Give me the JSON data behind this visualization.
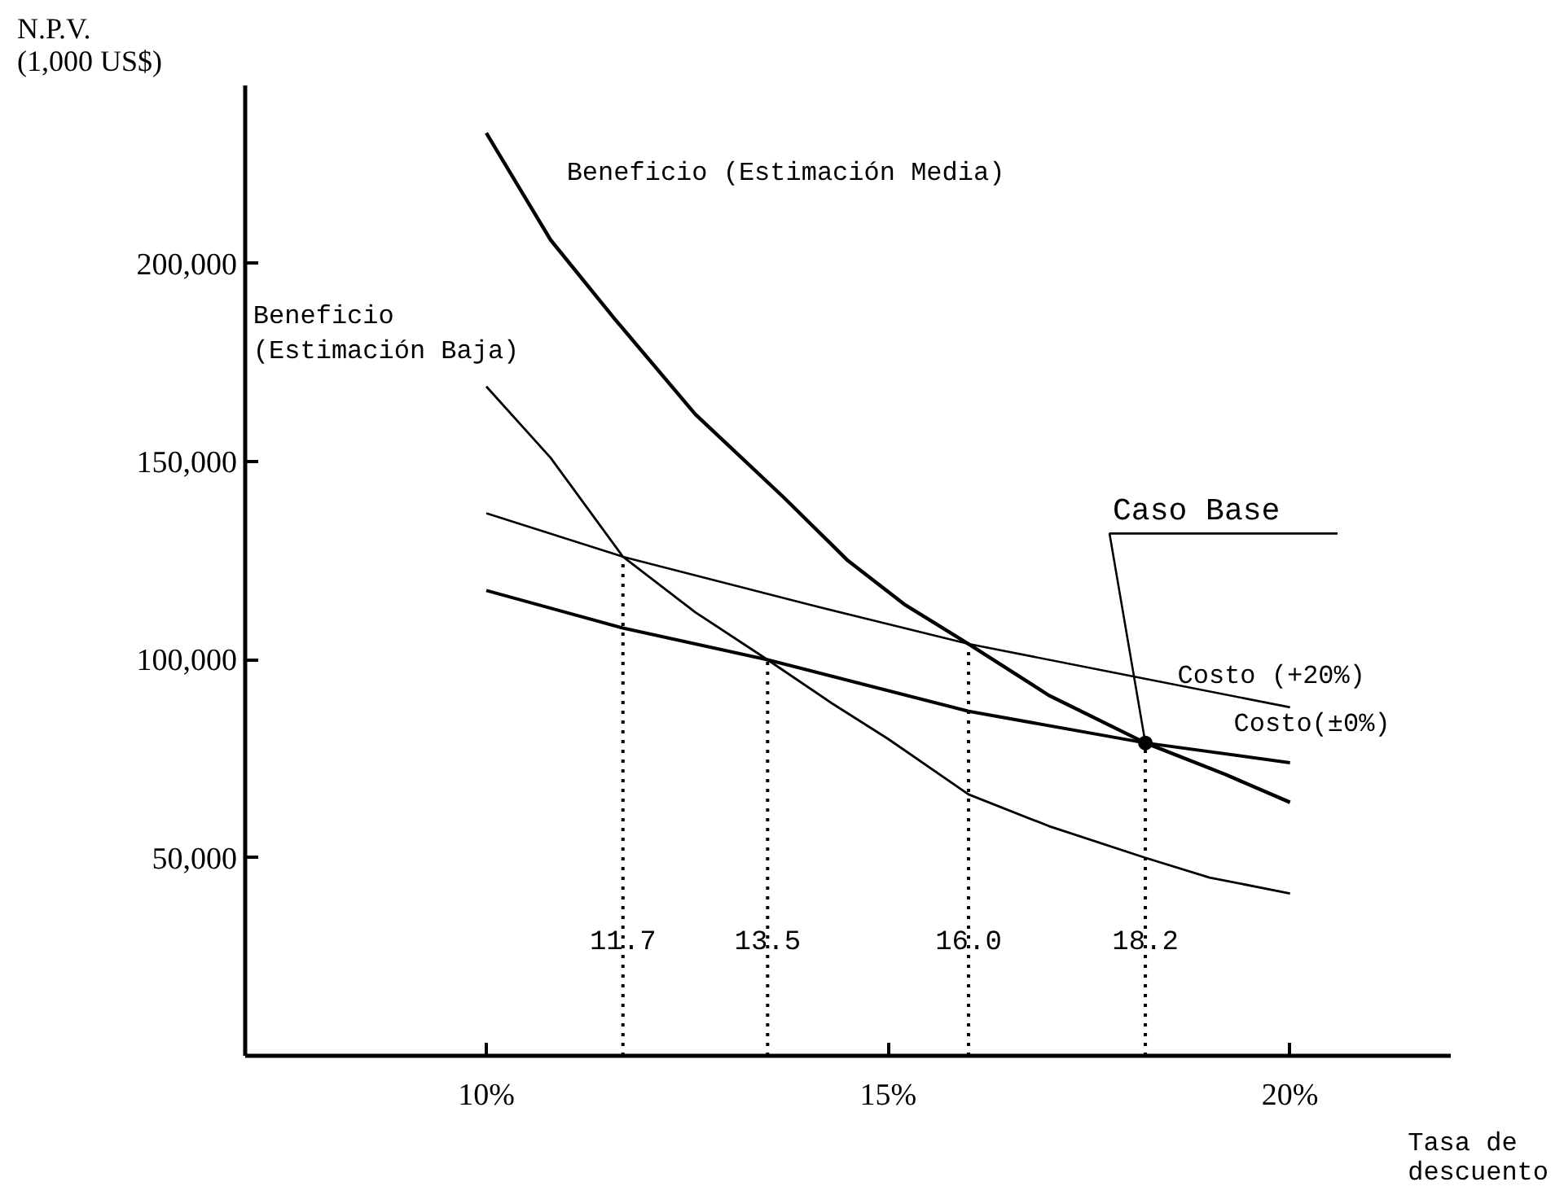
{
  "chart_data": {
    "type": "line",
    "xlabel": "Tasa de\ndescuento",
    "ylabel": "N.P.V.\n(1,000 US$)",
    "xlim": [
      7,
      22
    ],
    "ylim": [
      0,
      245000
    ],
    "xticks": [
      {
        "value": 10,
        "label": "10%"
      },
      {
        "value": 15,
        "label": "15%"
      },
      {
        "value": 20,
        "label": "20%"
      }
    ],
    "yticks": [
      {
        "value": 50000,
        "label": "50,000"
      },
      {
        "value": 100000,
        "label": "100,000"
      },
      {
        "value": 150000,
        "label": "150,000"
      },
      {
        "value": 200000,
        "label": "200,000"
      }
    ],
    "series": [
      {
        "name": "Beneficio (Estimación Media)",
        "color": "#000000",
        "x": [
          10,
          10.8,
          11.6,
          12.6,
          13.7,
          14.5,
          15.2,
          16.0,
          17.0,
          18.2,
          19.2,
          20
        ],
        "values": [
          233000,
          206000,
          186000,
          162000,
          141000,
          125000,
          114000,
          104000,
          91000,
          79000,
          71000,
          64000
        ]
      },
      {
        "name": "Beneficio\n(Estimación Baja)",
        "color": "#000000",
        "x": [
          10,
          10.8,
          11.7,
          12.6,
          13.5,
          14.3,
          15.0,
          16.0,
          17.0,
          18.2,
          19.0,
          20
        ],
        "values": [
          169000,
          151000,
          126000,
          112000,
          100000,
          89000,
          80000,
          66000,
          58000,
          50000,
          45000,
          41000
        ]
      },
      {
        "name": "Costo (+20%)",
        "color": "#000000",
        "x": [
          10,
          11.7,
          14,
          16.0,
          18,
          20
        ],
        "values": [
          137000,
          126000,
          114000,
          104000,
          96000,
          88000
        ]
      },
      {
        "name": "Costo(±0%)",
        "color": "#000000",
        "x": [
          10,
          11.7,
          13.5,
          16.0,
          18.2,
          20
        ],
        "values": [
          117500,
          108000,
          100000,
          87000,
          79000,
          74000
        ]
      }
    ],
    "ref_lines": [
      {
        "axis": "x",
        "value": 11.7,
        "label": "11.7",
        "line_style": "dotted"
      },
      {
        "axis": "x",
        "value": 13.5,
        "label": "13.5",
        "line_style": "dotted"
      },
      {
        "axis": "x",
        "value": 16.0,
        "label": "16.0",
        "line_style": "dotted"
      },
      {
        "axis": "x",
        "value": 18.2,
        "label": "18.2",
        "line_style": "dotted"
      }
    ],
    "annotations": [
      {
        "text": "Caso Base",
        "x": 18.2,
        "y": 79000
      }
    ],
    "grid": false,
    "marker": "none",
    "line_style": "solid"
  }
}
